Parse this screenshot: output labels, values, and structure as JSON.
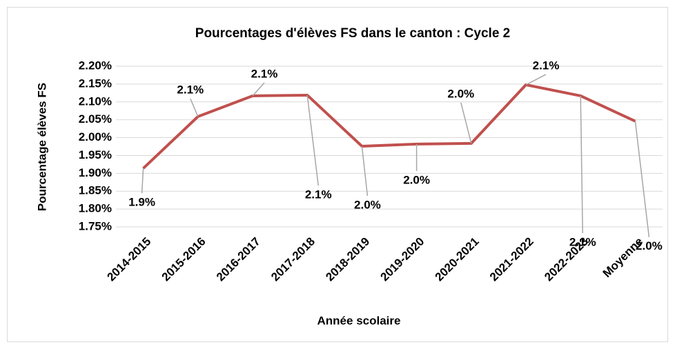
{
  "chart_data": {
    "type": "line",
    "title": "Pourcentages d'élèves FS dans le canton : Cycle 2",
    "xlabel": "Année scolaire",
    "ylabel": "Pourcentage élèves FS",
    "categories": [
      "2014-2015",
      "2015-2016",
      "2016-2017",
      "2017-2018",
      "2018-2019",
      "2019-2020",
      "2020-2021",
      "2021-2022",
      "2022-2023",
      "Moyenne"
    ],
    "series": [
      {
        "name": "Pourcentage élèves FS",
        "color": "#c0504d",
        "values": [
          1.914,
          2.059,
          2.117,
          2.119,
          1.976,
          1.982,
          1.984,
          2.148,
          2.117,
          2.046
        ],
        "value_labels": [
          "1.9%",
          "2.1%",
          "2.1%",
          "2.1%",
          "2.0%",
          "2.0%",
          "2.0%",
          "2.1%",
          "2.1%",
          "2.0%"
        ]
      }
    ],
    "ylim": [
      1.75,
      2.2
    ],
    "yticks": [
      {
        "value": 1.75,
        "label": "1.75%"
      },
      {
        "value": 1.8,
        "label": "1.80%"
      },
      {
        "value": 1.85,
        "label": "1.85%"
      },
      {
        "value": 1.9,
        "label": "1.90%"
      },
      {
        "value": 1.95,
        "label": "1.95%"
      },
      {
        "value": 2.0,
        "label": "2.00%"
      },
      {
        "value": 2.05,
        "label": "2.05%"
      },
      {
        "value": 2.1,
        "label": "2.10%"
      },
      {
        "value": 2.15,
        "label": "2.15%"
      },
      {
        "value": 2.2,
        "label": "2.20%"
      }
    ],
    "grid": true
  }
}
